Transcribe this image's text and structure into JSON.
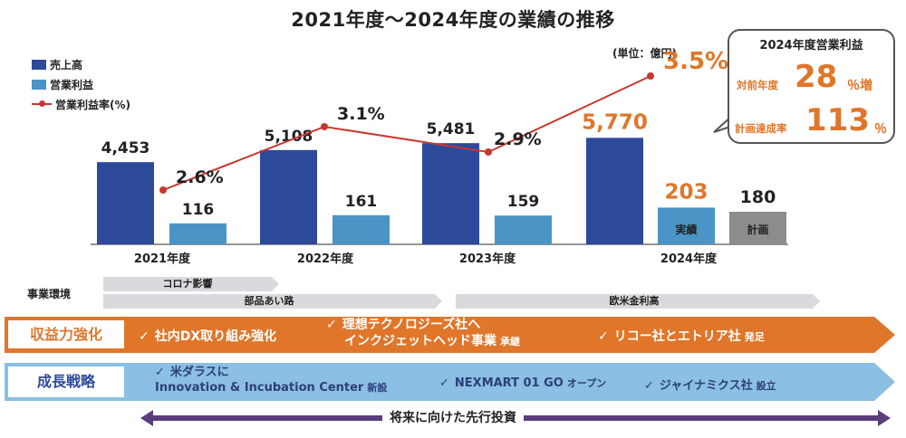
{
  "title": "2021年度～2024年度の業績の推移",
  "unit": "(単位：億円)",
  "legend": {
    "sales": "売上高",
    "profit": "営業利益",
    "margin": "営業利益率(%)"
  },
  "colors": {
    "sales": "#2d4a9a",
    "profit": "#4a95c6",
    "plan": "#8c8c8c",
    "line": "#c8362e",
    "highlight": "#e0762a",
    "band_orange": "#e0762a",
    "band_blue": "#8bbfe3",
    "future_arrow": "#5a3d7a"
  },
  "chart_data": {
    "type": "bar",
    "categories": [
      "2021年度",
      "2022年度",
      "2023年度",
      "2024年度"
    ],
    "series": [
      {
        "name": "売上高",
        "values": [
          4453,
          5108,
          5481,
          5770
        ],
        "labels": [
          "4,453",
          "5,108",
          "5,481",
          "5,770"
        ]
      },
      {
        "name": "営業利益",
        "values": [
          116,
          161,
          159,
          203
        ],
        "labels": [
          "116",
          "161",
          "159",
          "203"
        ]
      },
      {
        "name": "営業利益率(%)",
        "type": "line",
        "values": [
          2.6,
          3.1,
          2.9,
          3.5
        ],
        "labels": [
          "2.6%",
          "3.1%",
          "2.9%",
          "3.5%"
        ]
      }
    ],
    "plan": {
      "category": "2024年度",
      "value": 180,
      "label": "180",
      "bar_text": "計画"
    },
    "actual_bar_text": "実績"
  },
  "callout": {
    "title": "2024年度営業利益",
    "yoy_label": "対前年度",
    "yoy_value": "28",
    "yoy_suffix": "％増",
    "plan_label": "計画達成率",
    "plan_value": "113",
    "plan_suffix": "％"
  },
  "environment": {
    "label": "事業環境",
    "covid": "コロナ影響",
    "parts": "部品あい路",
    "rates": "欧米金利高"
  },
  "profitability": {
    "label": "収益力強化",
    "item1": "社内DX取り組み強化",
    "item2_line1": "理想テクノロジーズ社へ",
    "item2_line2": "インクジェットヘッド事業",
    "item2_suffix": "承継",
    "item3": "リコー社とエトリア社",
    "item3_suffix": "発足"
  },
  "growth": {
    "label": "成長戦略",
    "item1_line1": "米ダラスに",
    "item1_line2": "Innovation & Incubation Center",
    "item1_suffix": "新設",
    "item2": "NEXMART 01 GO",
    "item2_suffix": "オープン",
    "item3": "ジャイナミクス社",
    "item3_suffix": "設立"
  },
  "future": "将来に向けた先行投資"
}
